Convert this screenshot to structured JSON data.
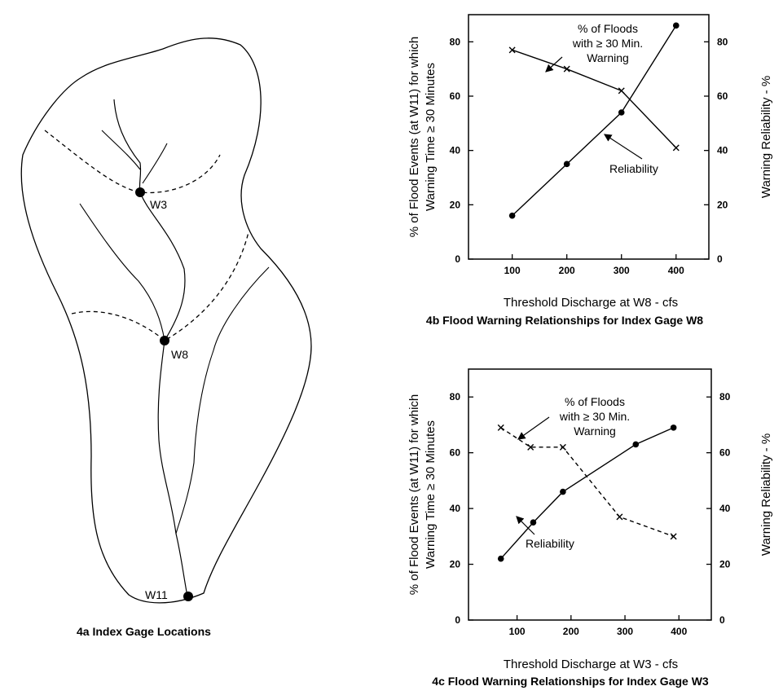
{
  "map": {
    "caption": "4a  Index Gage Locations",
    "gages": [
      {
        "id": "w3",
        "label": "W3"
      },
      {
        "id": "w8",
        "label": "W8"
      },
      {
        "id": "w11",
        "label": "W11"
      }
    ]
  },
  "chart_data": [
    {
      "id": "4b",
      "type": "line",
      "caption": "4b  Flood Warning Relationships for Index Gage W8",
      "xlabel": "Threshold Discharge at W8 - cfs",
      "ylabel": [
        "% of Flood Events (at W11) for which",
        "Warning Time ≥ 30 Minutes"
      ],
      "y2label": "Warning Reliability - %",
      "xlim": [
        20,
        460
      ],
      "ylim": [
        0,
        90
      ],
      "x_ticks": [
        100,
        200,
        300,
        400
      ],
      "y_ticks": [
        0,
        20,
        40,
        60,
        80
      ],
      "series": [
        {
          "key": "floods",
          "style": "solid",
          "marker": "x",
          "x": [
            100,
            200,
            300,
            400
          ],
          "y": [
            77,
            70,
            62,
            41
          ]
        },
        {
          "key": "reliability",
          "style": "solid",
          "marker": "dot",
          "x": [
            100,
            200,
            300,
            400
          ],
          "y": [
            16,
            35,
            54,
            86
          ]
        }
      ],
      "annotations": [
        {
          "key": "floods",
          "lines": [
            "% of Floods",
            "with ≥ 30 Min.",
            "Warning"
          ]
        },
        {
          "key": "reliability",
          "lines": [
            "Reliability"
          ]
        }
      ]
    },
    {
      "id": "4c",
      "type": "line",
      "caption": "4c  Flood Warning Relationships for Index Gage W3",
      "xlabel": "Threshold Discharge at W3 - cfs",
      "ylabel": [
        "% of Flood Events (at W11) for which",
        "Warning Time ≥ 30 Minutes"
      ],
      "y2label": "Warning Reliability - %",
      "xlim": [
        10,
        460
      ],
      "ylim": [
        0,
        90
      ],
      "x_ticks": [
        100,
        200,
        300,
        400
      ],
      "y_ticks": [
        0,
        20,
        40,
        60,
        80
      ],
      "series": [
        {
          "key": "floods",
          "style": "dashed",
          "marker": "x",
          "x": [
            70,
            125,
            185,
            290,
            390
          ],
          "y": [
            69,
            62,
            62,
            37,
            30
          ]
        },
        {
          "key": "reliability",
          "style": "solid",
          "marker": "dot",
          "x": [
            70,
            130,
            185,
            320,
            390
          ],
          "y": [
            22,
            35,
            46,
            63,
            69
          ]
        }
      ],
      "annotations": [
        {
          "key": "floods",
          "lines": [
            "% of Floods",
            "with ≥ 30 Min.",
            "Warning"
          ]
        },
        {
          "key": "reliability",
          "lines": [
            "Reliability"
          ]
        }
      ]
    }
  ]
}
